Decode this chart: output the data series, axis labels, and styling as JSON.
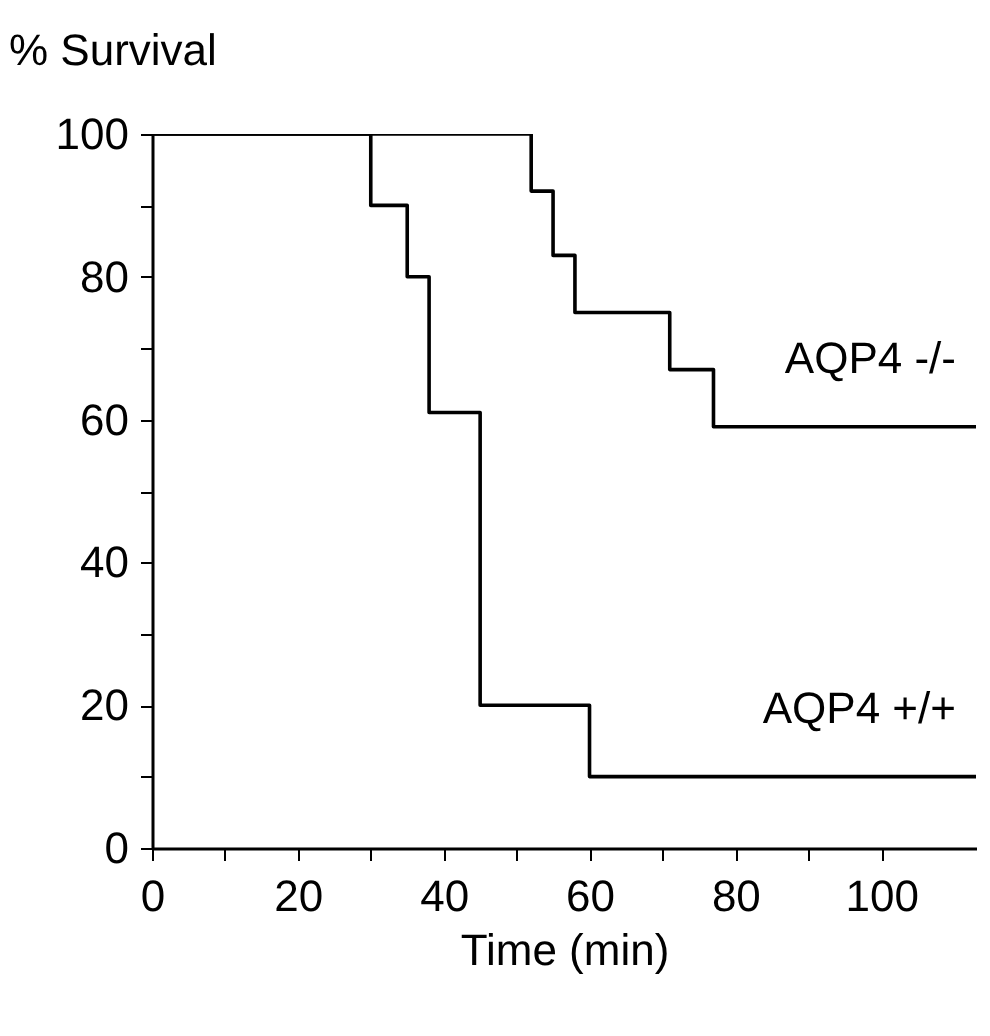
{
  "chart_data": {
    "type": "step",
    "xlabel": "Time  (min)",
    "ylabel": "% Survival",
    "xlim": [
      0,
      113
    ],
    "ylim": [
      0,
      100
    ],
    "xticks": [
      0,
      {
        "value": 10,
        "label": null
      },
      20,
      {
        "value": 30,
        "label": null
      },
      40,
      {
        "value": 50,
        "label": null
      },
      60,
      {
        "value": 70,
        "label": null
      },
      80,
      {
        "value": 90,
        "label": null
      },
      100
    ],
    "yticks": [
      0,
      {
        "value": 10,
        "label": null
      },
      20,
      {
        "value": 30,
        "label": null
      },
      40,
      {
        "value": 50,
        "label": null
      },
      60,
      {
        "value": 70,
        "label": null
      },
      80,
      {
        "value": 90,
        "label": null
      },
      100
    ],
    "grid": false,
    "legend": false,
    "series": [
      {
        "name": "AQP4 -/-",
        "color": "#000000",
        "x": [
          0,
          52,
          55,
          58,
          71,
          77,
          113
        ],
        "values": [
          100,
          92,
          83,
          75,
          67,
          59,
          59
        ]
      },
      {
        "name": "AQP4 +/+",
        "color": "#000000",
        "x": [
          0,
          30,
          35,
          38,
          45,
          60,
          113
        ],
        "values": [
          100,
          90,
          80,
          61,
          20,
          10,
          10
        ]
      }
    ]
  }
}
